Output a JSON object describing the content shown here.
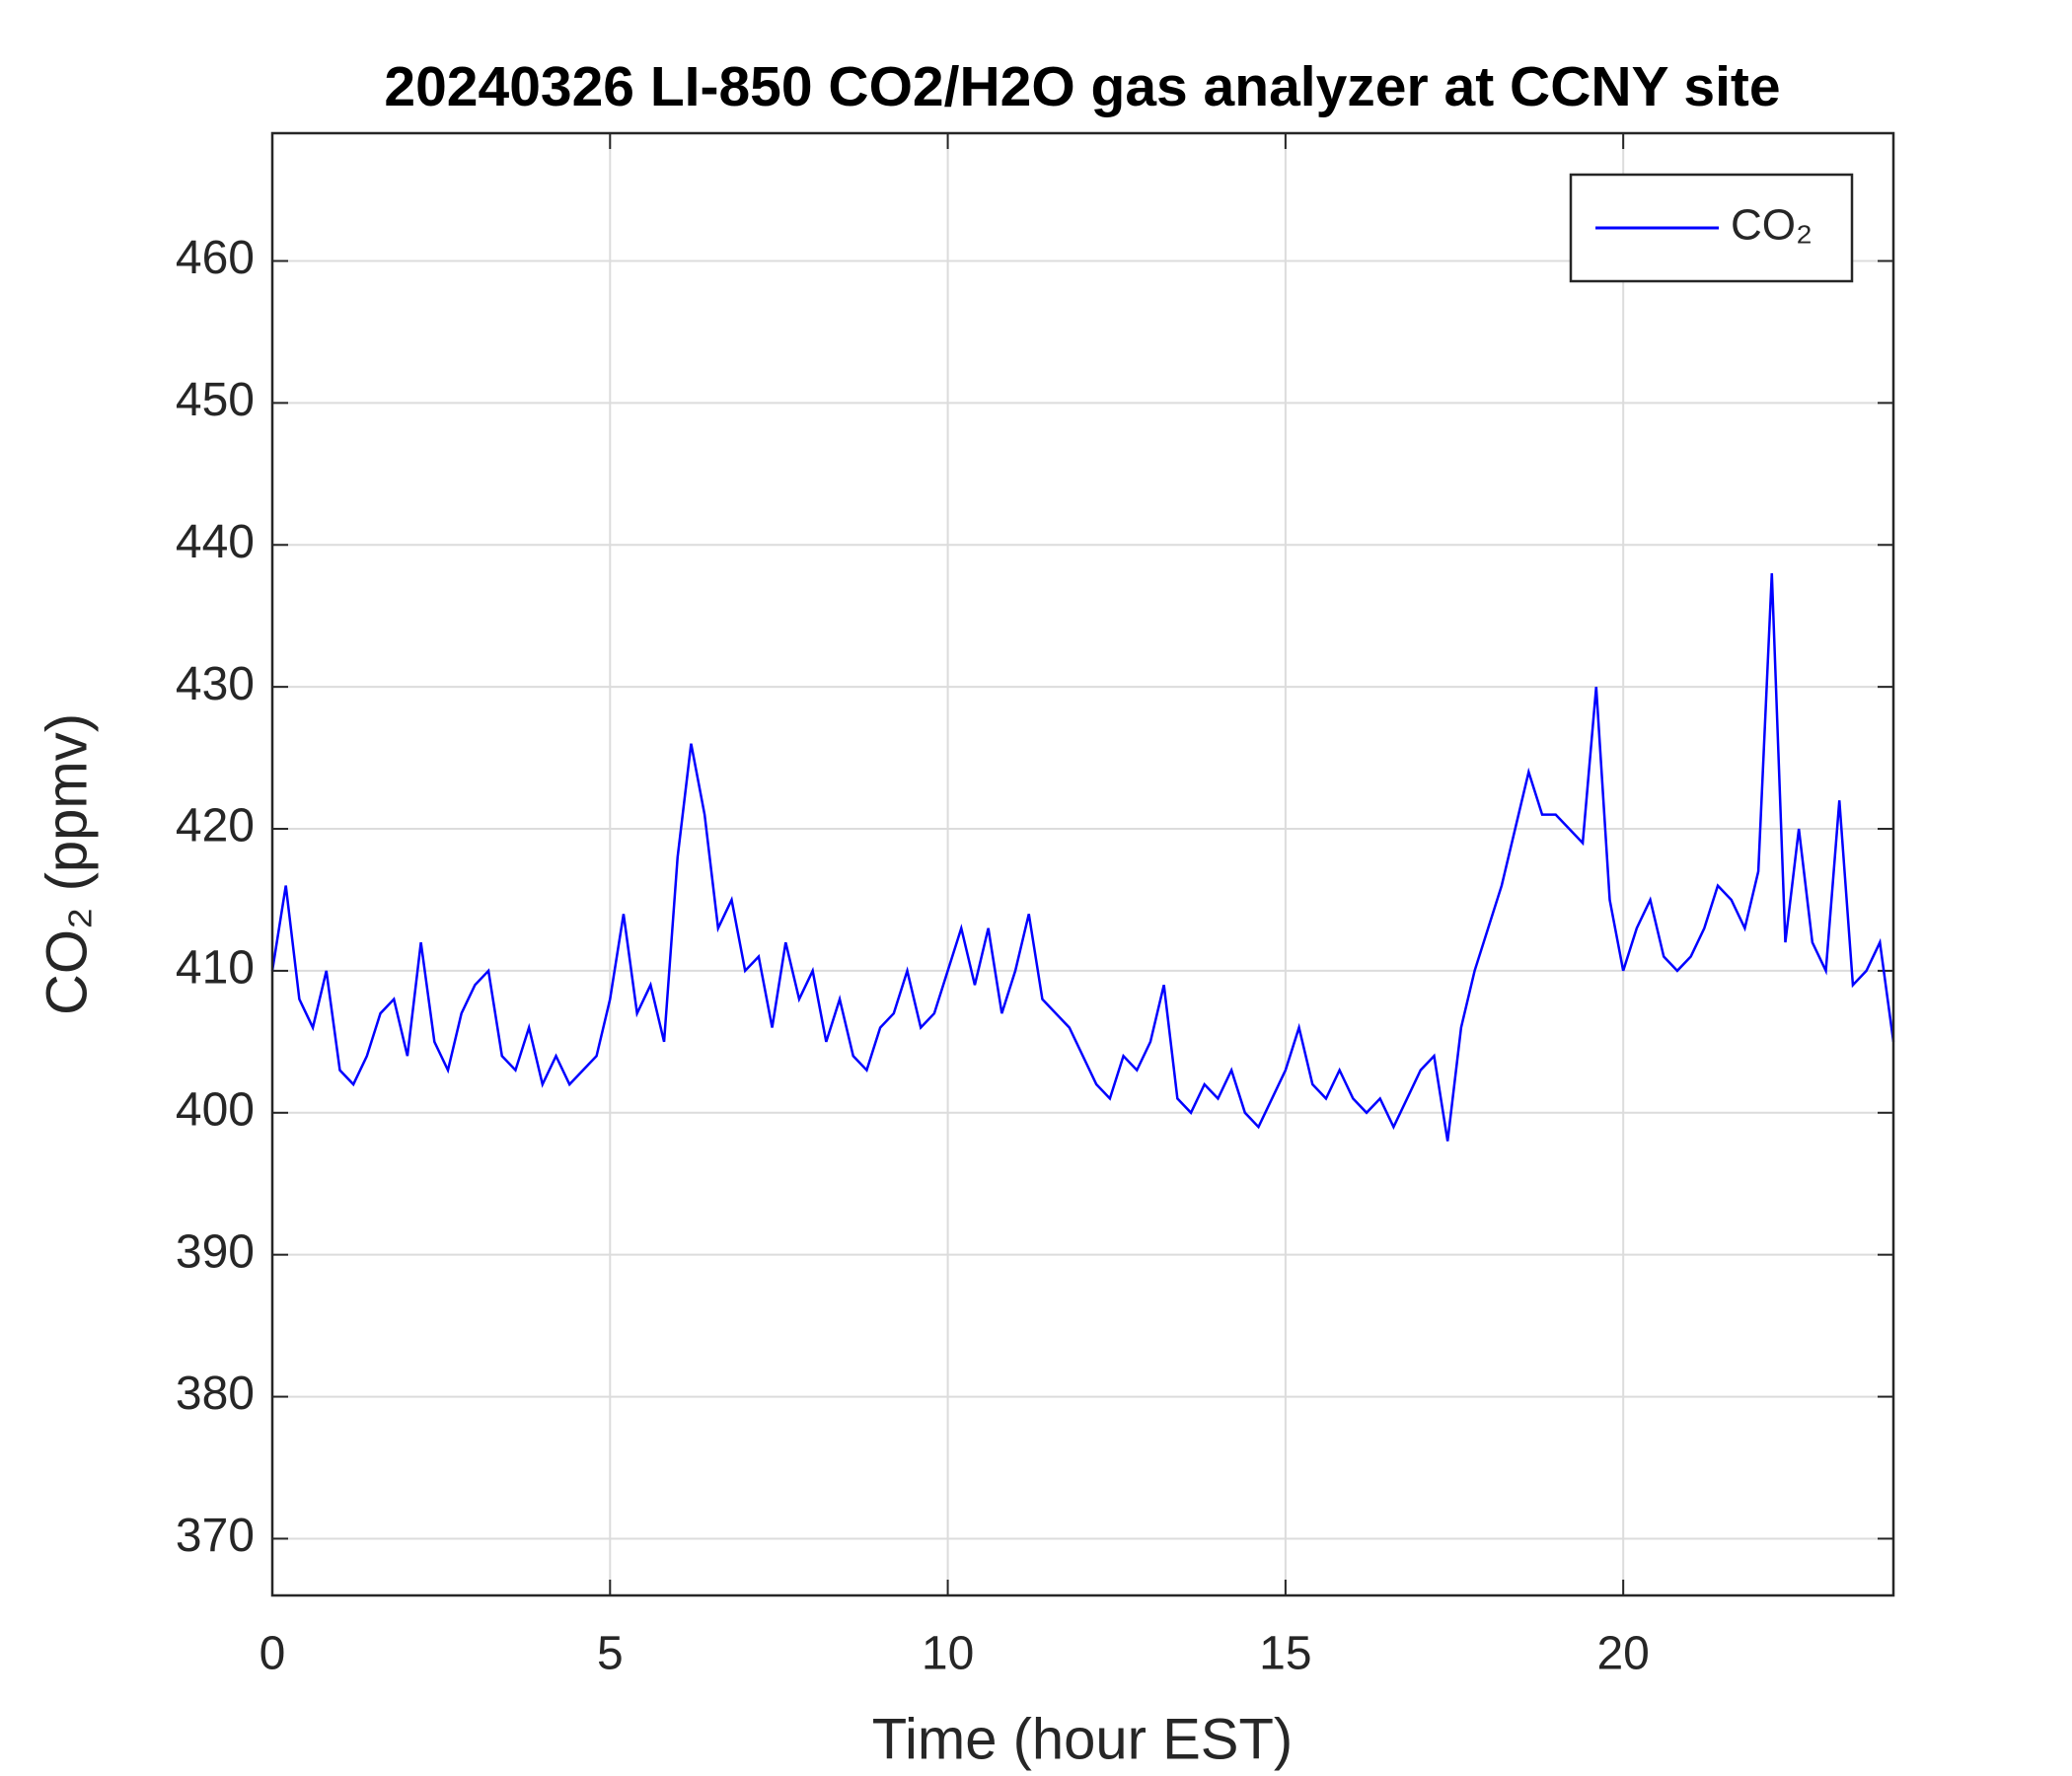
{
  "chart_data": {
    "type": "line",
    "title": "20240326 LI-850 CO2/H2O gas analyzer at CCNY site",
    "xlabel": "Time (hour EST)",
    "ylabel": "CO₂ (ppmv)",
    "xlim": [
      0,
      24
    ],
    "xticks": [
      0,
      5,
      10,
      15,
      20
    ],
    "ylim": [
      366,
      469
    ],
    "yticks": [
      370,
      380,
      390,
      400,
      410,
      420,
      430,
      440,
      450,
      460
    ],
    "grid": true,
    "legend": "upper right",
    "x": [
      0,
      0.2,
      0.4,
      0.6,
      0.8,
      1,
      1.2,
      1.4,
      1.6,
      1.8,
      2,
      2.2,
      2.4,
      2.6,
      2.8,
      3,
      3.2,
      3.4,
      3.6,
      3.8,
      4,
      4.2,
      4.4,
      4.6,
      4.8,
      5,
      5.2,
      5.4,
      5.6,
      5.8,
      6,
      6.2,
      6.4,
      6.6,
      6.8,
      7,
      7.2,
      7.4,
      7.6,
      7.8,
      8,
      8.2,
      8.4,
      8.6,
      8.8,
      9,
      9.2,
      9.4,
      9.6,
      9.8,
      10,
      10.2,
      10.4,
      10.6,
      10.8,
      11,
      11.2,
      11.4,
      11.6,
      11.8,
      12,
      12.2,
      12.4,
      12.6,
      12.8,
      13,
      13.2,
      13.4,
      13.6,
      13.8,
      14,
      14.2,
      14.4,
      14.6,
      14.8,
      15,
      15.2,
      15.4,
      15.6,
      15.8,
      16,
      16.2,
      16.4,
      16.6,
      16.8,
      17,
      17.2,
      17.4,
      17.6,
      17.8,
      18,
      18.2,
      18.4,
      18.6,
      18.8,
      19,
      19.2,
      19.4,
      19.6,
      19.8,
      20,
      20.2,
      20.4,
      20.6,
      20.8,
      21,
      21.2,
      21.4,
      21.6,
      21.8,
      22,
      22.2,
      22.4,
      22.6,
      22.8,
      23,
      23.2,
      23.4,
      23.6,
      23.8,
      24
    ],
    "series": [
      {
        "name": "CO₂",
        "color": "#0000ff",
        "values": [
          410,
          416,
          408,
          406,
          410,
          403,
          402,
          404,
          407,
          408,
          404,
          412,
          405,
          403,
          407,
          409,
          410,
          404,
          403,
          406,
          402,
          404,
          402,
          403,
          404,
          408,
          414,
          407,
          409,
          405,
          418,
          426,
          421,
          413,
          415,
          410,
          411,
          406,
          412,
          408,
          410,
          405,
          408,
          404,
          403,
          406,
          407,
          410,
          406,
          407,
          410,
          413,
          409,
          413,
          407,
          410,
          414,
          408,
          407,
          406,
          404,
          402,
          401,
          404,
          403,
          405,
          409,
          401,
          400,
          402,
          401,
          403,
          400,
          399,
          401,
          403,
          406,
          402,
          401,
          403,
          401,
          400,
          401,
          399,
          401,
          403,
          404,
          398,
          406,
          410,
          413,
          416,
          420,
          424,
          421,
          421,
          420,
          419,
          430,
          415,
          410,
          413,
          415,
          411,
          410,
          411,
          413,
          416,
          415,
          413,
          417,
          438,
          412,
          420,
          412,
          410,
          422,
          409,
          410,
          412,
          405
        ]
      }
    ]
  }
}
